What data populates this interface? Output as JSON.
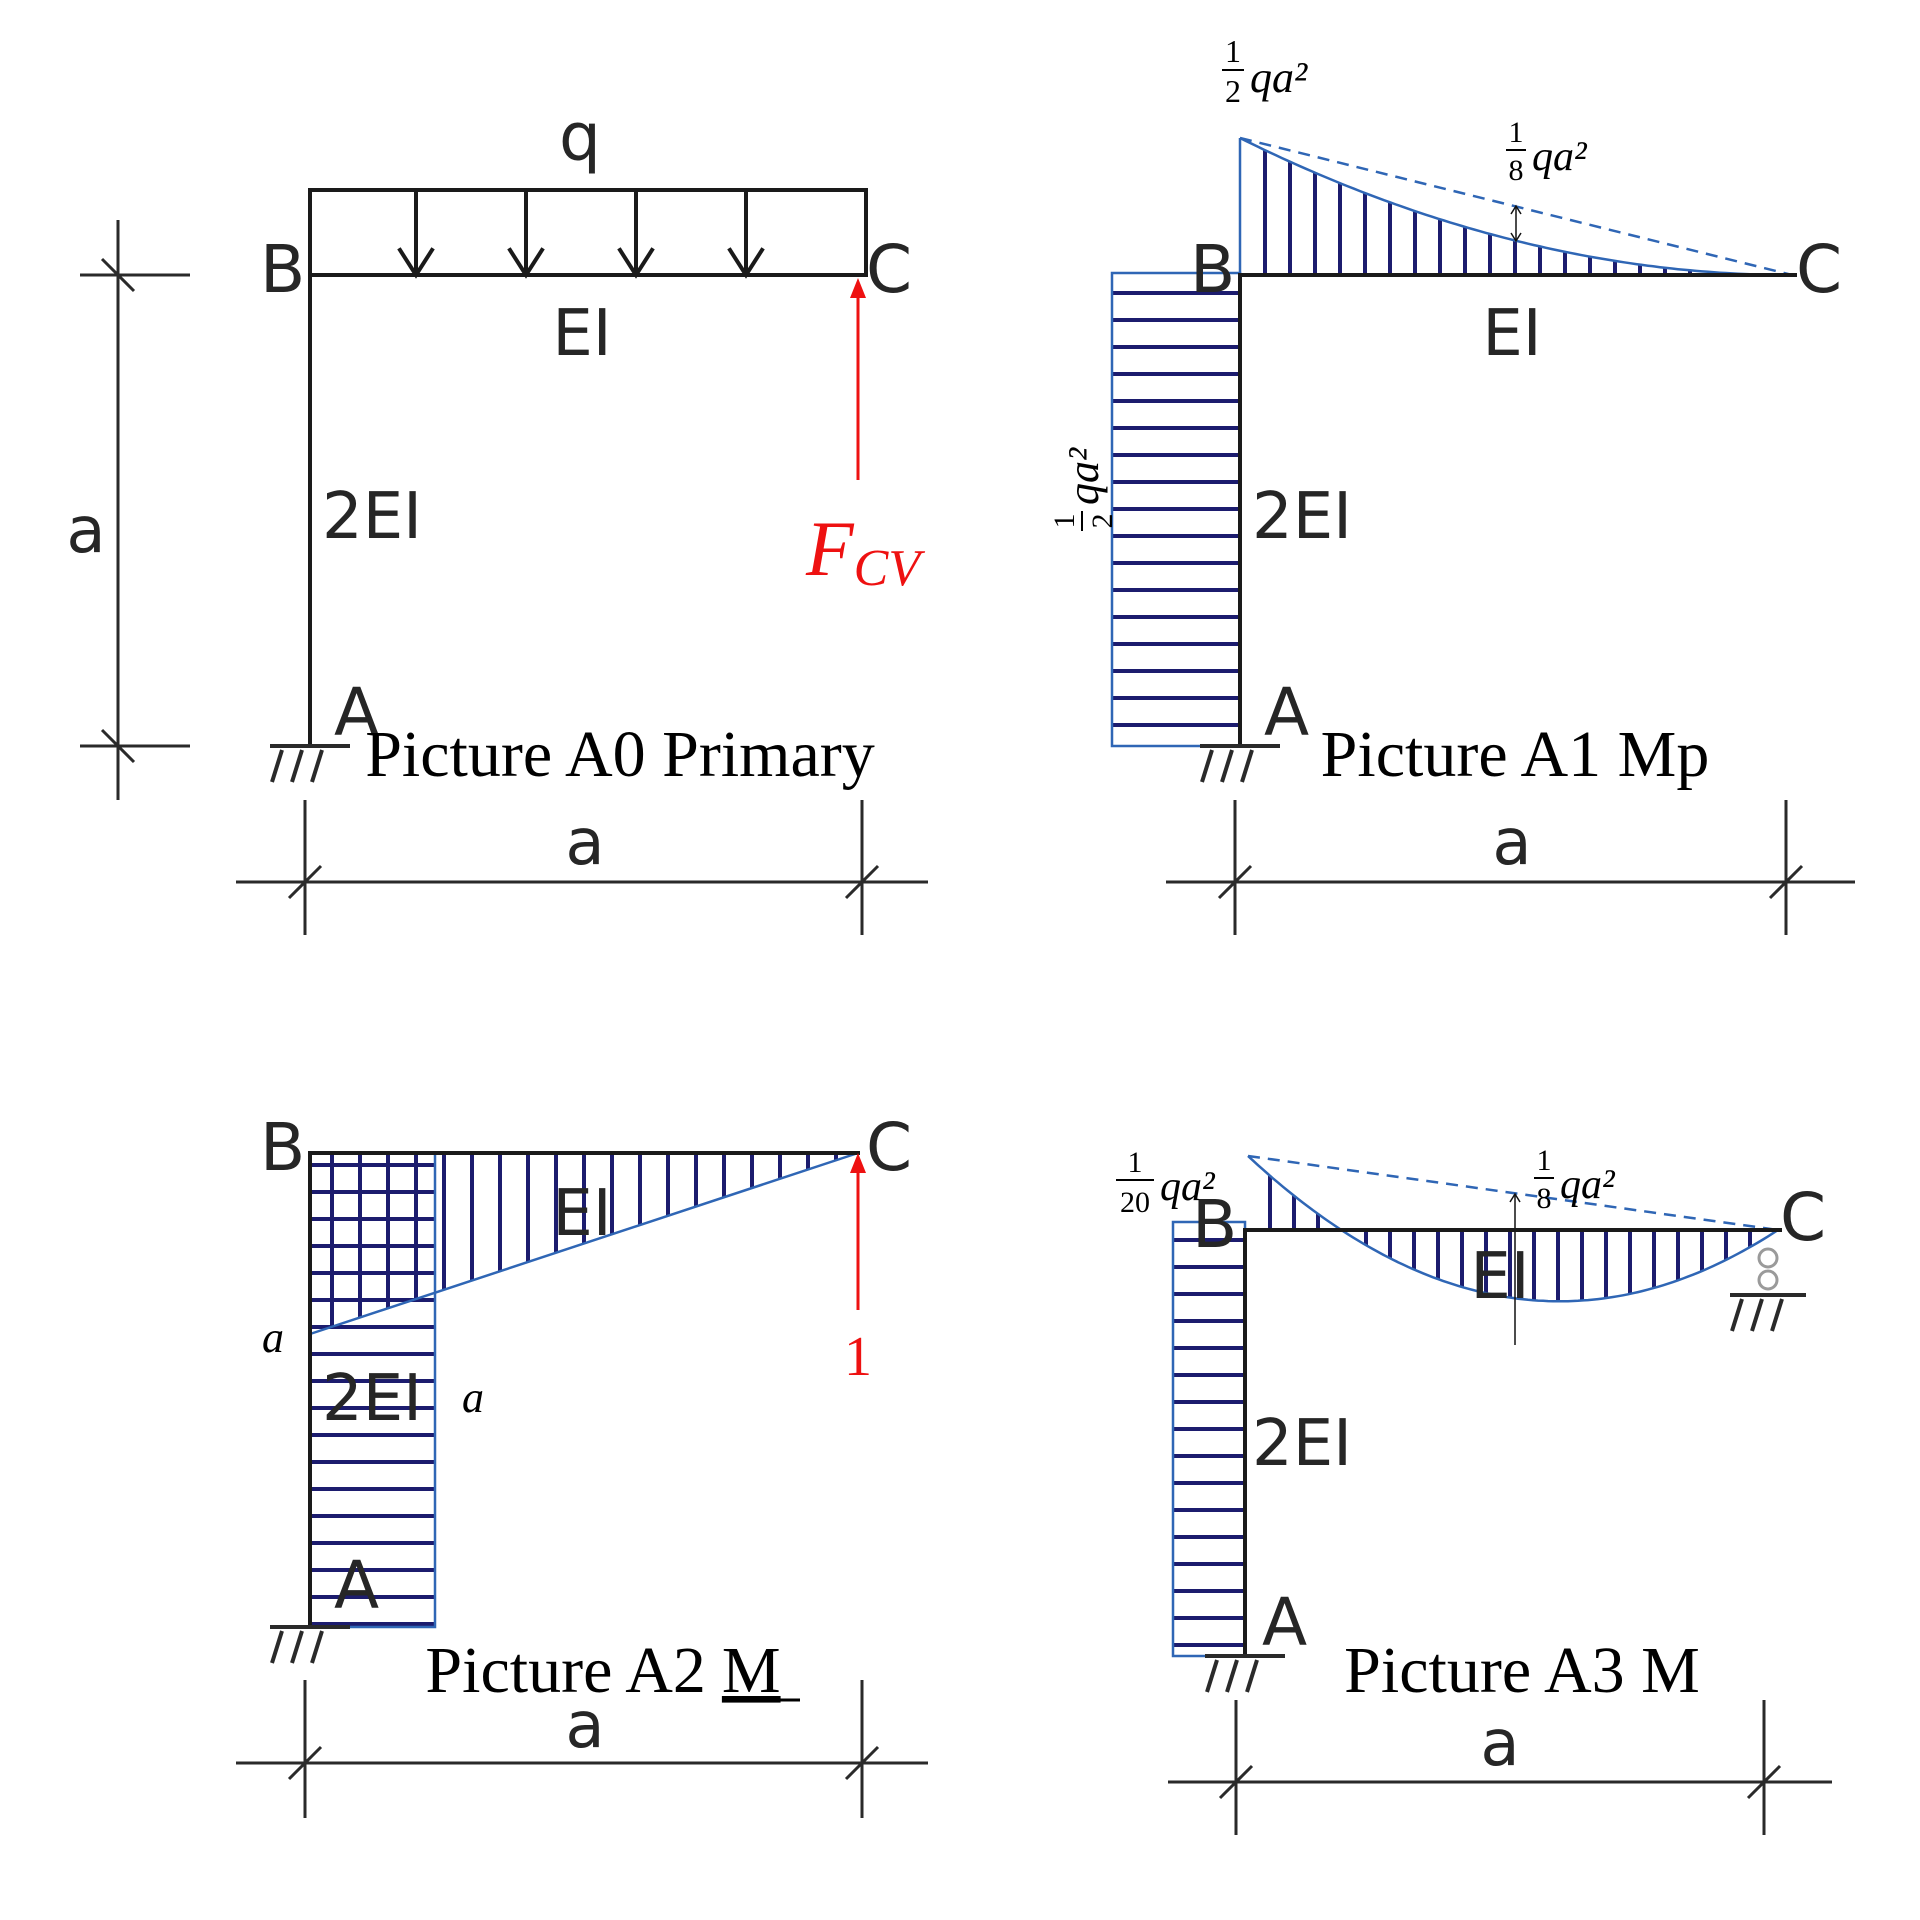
{
  "panels": {
    "a0": {
      "caption": "Picture A0 Primary",
      "load": "q",
      "node_b": "B",
      "node_c": "C",
      "node_a": "A",
      "beam_stiffness": "EI",
      "column_stiffness": "2EI",
      "dim_vertical": "a",
      "dim_horizontal": "a",
      "force_main": "F",
      "force_sub": "CV"
    },
    "a1": {
      "caption": "Picture A1 Mp",
      "node_b": "B",
      "node_c": "C",
      "node_a": "A",
      "beam_stiffness": "EI",
      "column_stiffness": "2EI",
      "dim_horizontal": "a",
      "top_num": "1",
      "top_den": "2",
      "top_rest": "qa²",
      "mid_num": "1",
      "mid_den": "8",
      "mid_rest": "qa²",
      "col_num": "1",
      "col_den": "2",
      "col_rest": "qa²"
    },
    "a2": {
      "caption_text": "Picture A2",
      "caption_symbol": "M",
      "node_b": "B",
      "node_c": "C",
      "node_a": "A",
      "beam_stiffness": "EI",
      "column_stiffness": "2EI",
      "dim_horizontal": "a",
      "value_left": "a",
      "value_right": "a",
      "unit_load": "1"
    },
    "a3": {
      "caption": "Picture A3 M",
      "node_b": "B",
      "node_c": "C",
      "node_a": "A",
      "beam_stiffness": "EI",
      "column_stiffness": "2EI",
      "dim_horizontal": "a",
      "left_num": "1",
      "left_den": "20",
      "left_rest": "qa²",
      "mid_num": "1",
      "mid_den": "8",
      "mid_rest": "qa²"
    }
  },
  "colors": {
    "hatch": "#1c1c6e",
    "outline": "#2f66b5",
    "force": "#ee1111"
  }
}
